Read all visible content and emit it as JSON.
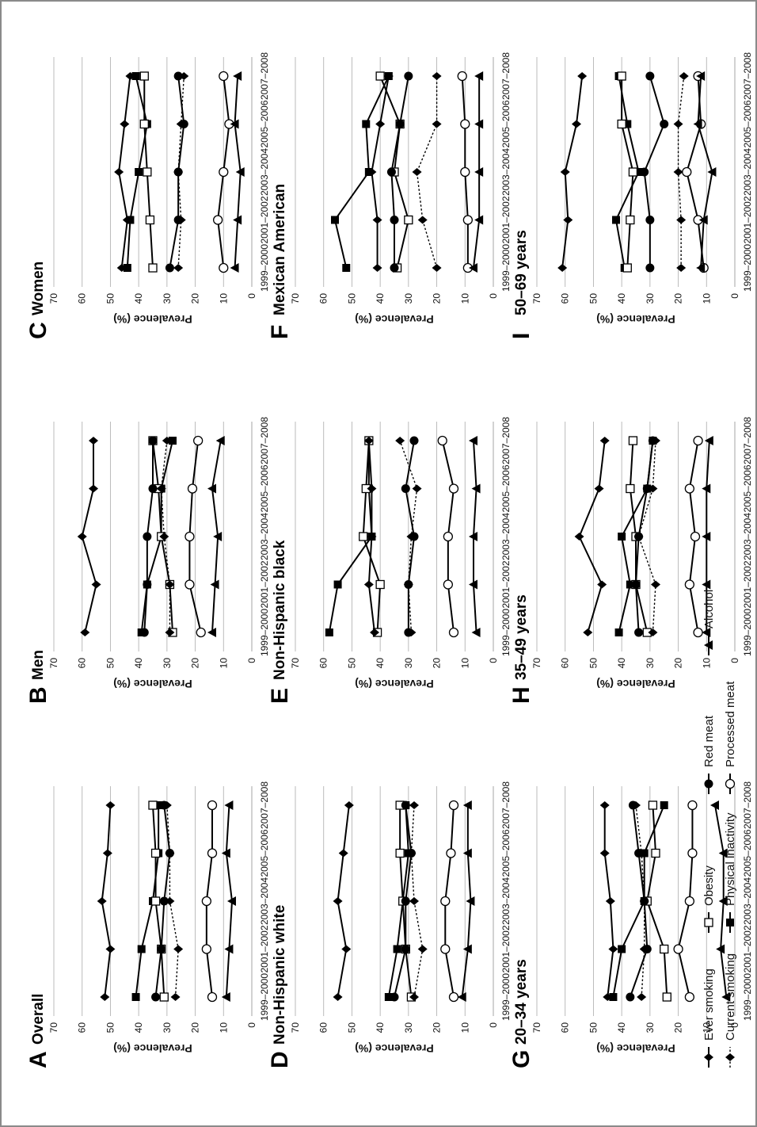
{
  "figure": {
    "legend": [
      {
        "name": "Ever smoking",
        "marker": "diamond",
        "dash": false
      },
      {
        "name": "Current smoking",
        "marker": "diamond",
        "dash": true
      },
      {
        "name": "Obesity",
        "marker": "square-open",
        "dash": false
      },
      {
        "name": "Physical inactivity",
        "marker": "square",
        "dash": false
      },
      {
        "name": "Red meat",
        "marker": "circle",
        "dash": false
      },
      {
        "name": "Processed meat",
        "marker": "circle-open",
        "dash": false
      },
      {
        "name": "Alcohol",
        "marker": "triangle",
        "dash": false
      }
    ],
    "colors": {
      "line": "#000000",
      "grid": "#b4b4b4",
      "frame": "#8a8a8a"
    }
  },
  "chart_data": [
    {
      "letter": "A",
      "title": "Overall",
      "type": "line",
      "x": [
        "1999–2000",
        "2001–2002",
        "2003–2004",
        "2005–2006",
        "2007–2008"
      ],
      "ylabel": "Prevalence (%)",
      "ylim": [
        0,
        70
      ],
      "yticks": [
        0,
        10,
        20,
        30,
        40,
        50,
        60,
        70
      ],
      "grid": true,
      "series": [
        {
          "name": "Ever smoking",
          "values": [
            52,
            50,
            53,
            51,
            50
          ]
        },
        {
          "name": "Current smoking",
          "values": [
            27,
            26,
            29,
            29,
            30
          ]
        },
        {
          "name": "Obesity",
          "values": [
            31,
            32,
            34,
            34,
            35
          ]
        },
        {
          "name": "Physical inactivity",
          "values": [
            41,
            39,
            35,
            33,
            33
          ]
        },
        {
          "name": "Red meat",
          "values": [
            34,
            32,
            31,
            29,
            31
          ]
        },
        {
          "name": "Processed meat",
          "values": [
            14,
            16,
            16,
            14,
            14
          ]
        },
        {
          "name": "Alcohol",
          "values": [
            9,
            8,
            7,
            9,
            8
          ]
        }
      ]
    },
    {
      "letter": "B",
      "title": "Men",
      "type": "line",
      "x": [
        "1999–2000",
        "2001–2002",
        "2003–2004",
        "2005–2006",
        "2007–2008"
      ],
      "ylabel": "Prevalence (%)",
      "ylim": [
        0,
        70
      ],
      "yticks": [
        0,
        10,
        20,
        30,
        40,
        50,
        60,
        70
      ],
      "grid": true,
      "series": [
        {
          "name": "Ever smoking",
          "values": [
            59,
            55,
            60,
            56,
            56
          ]
        },
        {
          "name": "Current smoking",
          "values": [
            29,
            29,
            31,
            32,
            30
          ]
        },
        {
          "name": "Obesity",
          "values": [
            28,
            29,
            32,
            33,
            35
          ]
        },
        {
          "name": "Physical inactivity",
          "values": [
            39,
            37,
            32,
            32,
            28
          ]
        },
        {
          "name": "Red meat",
          "values": [
            38,
            37,
            37,
            35,
            35
          ]
        },
        {
          "name": "Processed meat",
          "values": [
            18,
            22,
            22,
            21,
            19
          ]
        },
        {
          "name": "Alcohol",
          "values": [
            14,
            13,
            12,
            14,
            11
          ]
        }
      ]
    },
    {
      "letter": "C",
      "title": "Women",
      "type": "line",
      "x": [
        "1999–2000",
        "2001–2002",
        "2003–2004",
        "2005–2006",
        "2007–2008"
      ],
      "ylabel": "Prevalence (%)",
      "ylim": [
        0,
        70
      ],
      "yticks": [
        0,
        10,
        20,
        30,
        40,
        50,
        60,
        70
      ],
      "grid": true,
      "series": [
        {
          "name": "Ever smoking",
          "values": [
            46,
            44,
            47,
            45,
            43
          ]
        },
        {
          "name": "Current smoking",
          "values": [
            26,
            25,
            26,
            25,
            24
          ]
        },
        {
          "name": "Obesity",
          "values": [
            35,
            36,
            37,
            38,
            38
          ]
        },
        {
          "name": "Physical inactivity",
          "values": [
            44,
            43,
            40,
            37,
            41
          ]
        },
        {
          "name": "Red meat",
          "values": [
            29,
            26,
            26,
            24,
            26
          ]
        },
        {
          "name": "Processed meat",
          "values": [
            10,
            12,
            10,
            8,
            10
          ]
        },
        {
          "name": "Alcohol",
          "values": [
            6,
            5,
            4,
            6,
            5
          ]
        }
      ]
    },
    {
      "letter": "D",
      "title": "Non-Hispanic white",
      "type": "line",
      "x": [
        "1999–2000",
        "2001–2002",
        "2003–2004",
        "2005–2006",
        "2007–2008"
      ],
      "ylabel": "Prevalence (%)",
      "ylim": [
        0,
        70
      ],
      "yticks": [
        0,
        10,
        20,
        30,
        40,
        50,
        60,
        70
      ],
      "grid": true,
      "series": [
        {
          "name": "Ever smoking",
          "values": [
            55,
            52,
            55,
            53,
            51
          ]
        },
        {
          "name": "Current smoking",
          "values": [
            28,
            25,
            28,
            29,
            28
          ]
        },
        {
          "name": "Obesity",
          "values": [
            29,
            31,
            32,
            33,
            33
          ]
        },
        {
          "name": "Physical inactivity",
          "values": [
            37,
            34,
            32,
            30,
            31
          ]
        },
        {
          "name": "Red meat",
          "values": [
            35,
            31,
            31,
            29,
            31
          ]
        },
        {
          "name": "Processed meat",
          "values": [
            14,
            17,
            17,
            15,
            14
          ]
        },
        {
          "name": "Alcohol",
          "values": [
            11,
            9,
            8,
            9,
            9
          ]
        }
      ]
    },
    {
      "letter": "E",
      "title": "Non-Hispanic black",
      "type": "line",
      "x": [
        "1999–2000",
        "2001–2002",
        "2003–2004",
        "2005–2006",
        "2007–2008"
      ],
      "ylabel": "Prevalence (%)",
      "ylim": [
        0,
        70
      ],
      "yticks": [
        0,
        10,
        20,
        30,
        40,
        50,
        60,
        70
      ],
      "grid": true,
      "series": [
        {
          "name": "Ever smoking",
          "values": [
            42,
            44,
            43,
            43,
            44
          ]
        },
        {
          "name": "Current smoking",
          "values": [
            29,
            30,
            29,
            27,
            33
          ]
        },
        {
          "name": "Obesity",
          "values": [
            41,
            40,
            46,
            45,
            44
          ]
        },
        {
          "name": "Physical inactivity",
          "values": [
            58,
            55,
            43,
            44,
            44
          ]
        },
        {
          "name": "Red meat",
          "values": [
            30,
            30,
            28,
            31,
            28
          ]
        },
        {
          "name": "Processed meat",
          "values": [
            14,
            16,
            16,
            14,
            18
          ]
        },
        {
          "name": "Alcohol",
          "values": [
            6,
            7,
            7,
            6,
            7
          ]
        }
      ]
    },
    {
      "letter": "F",
      "title": "Mexican American",
      "type": "line",
      "x": [
        "1999–2000",
        "2001–2002",
        "2003–2004",
        "2005–2006",
        "2007–2008"
      ],
      "ylabel": "Prevalence (%)",
      "ylim": [
        0,
        70
      ],
      "yticks": [
        0,
        10,
        20,
        30,
        40,
        50,
        60,
        70
      ],
      "grid": true,
      "series": [
        {
          "name": "Ever smoking",
          "values": [
            41,
            41,
            43,
            40,
            37
          ]
        },
        {
          "name": "Current smoking",
          "values": [
            20,
            25,
            27,
            20,
            20
          ]
        },
        {
          "name": "Obesity",
          "values": [
            34,
            30,
            35,
            33,
            40
          ]
        },
        {
          "name": "Physical inactivity",
          "values": [
            52,
            56,
            44,
            45,
            37
          ]
        },
        {
          "name": "Red meat",
          "values": [
            35,
            35,
            36,
            33,
            30
          ]
        },
        {
          "name": "Processed meat",
          "values": [
            9,
            9,
            10,
            10,
            11
          ]
        },
        {
          "name": "Alcohol",
          "values": [
            7,
            5,
            5,
            5,
            5
          ]
        }
      ]
    },
    {
      "letter": "G",
      "title": "20–34 years",
      "type": "line",
      "x": [
        "1999–2000",
        "2001–2002",
        "2003–2004",
        "2005–2006",
        "2007–2008"
      ],
      "ylabel": "Prevalence (%)",
      "ylim": [
        0,
        70
      ],
      "yticks": [
        0,
        10,
        20,
        30,
        40,
        50,
        60,
        70
      ],
      "grid": true,
      "series": [
        {
          "name": "Ever smoking",
          "values": [
            45,
            43,
            44,
            46,
            46
          ]
        },
        {
          "name": "Current smoking",
          "values": [
            33,
            32,
            32,
            33,
            35
          ]
        },
        {
          "name": "Obesity",
          "values": [
            24,
            25,
            31,
            28,
            29
          ]
        },
        {
          "name": "Physical inactivity",
          "values": [
            43,
            40,
            32,
            32,
            25
          ]
        },
        {
          "name": "Red meat",
          "values": [
            37,
            31,
            32,
            34,
            36
          ]
        },
        {
          "name": "Processed meat",
          "values": [
            16,
            20,
            16,
            15,
            15
          ]
        },
        {
          "name": "Alcohol",
          "values": [
            3,
            5,
            4,
            4,
            7
          ]
        }
      ]
    },
    {
      "letter": "H",
      "title": "35–49 years",
      "type": "line",
      "x": [
        "1999–2000",
        "2001–2002",
        "2003–2004",
        "2005–2006",
        "2007–2008"
      ],
      "ylabel": "Prevalence (%)",
      "ylim": [
        0,
        70
      ],
      "yticks": [
        0,
        10,
        20,
        30,
        40,
        50,
        60,
        70
      ],
      "grid": true,
      "series": [
        {
          "name": "Ever smoking",
          "values": [
            52,
            47,
            55,
            48,
            46
          ]
        },
        {
          "name": "Current smoking",
          "values": [
            29,
            28,
            34,
            29,
            28
          ]
        },
        {
          "name": "Obesity",
          "values": [
            31,
            35,
            35,
            37,
            36
          ]
        },
        {
          "name": "Physical inactivity",
          "values": [
            41,
            37,
            40,
            31,
            29
          ]
        },
        {
          "name": "Red meat",
          "values": [
            34,
            35,
            34,
            31,
            29
          ]
        },
        {
          "name": "Processed meat",
          "values": [
            13,
            16,
            14,
            16,
            13
          ]
        },
        {
          "name": "Alcohol",
          "values": [
            10,
            10,
            10,
            10,
            9
          ]
        }
      ]
    },
    {
      "letter": "I",
      "title": "50–69 years",
      "type": "line",
      "x": [
        "1999–2000",
        "2001–2002",
        "2003–2004",
        "2005–2006",
        "2007–2008"
      ],
      "ylabel": "Prevalence (%)",
      "ylim": [
        0,
        70
      ],
      "yticks": [
        0,
        10,
        20,
        30,
        40,
        50,
        60,
        70
      ],
      "grid": true,
      "series": [
        {
          "name": "Ever smoking",
          "values": [
            61,
            59,
            60,
            56,
            54
          ]
        },
        {
          "name": "Current smoking",
          "values": [
            19,
            19,
            20,
            20,
            18
          ]
        },
        {
          "name": "Obesity",
          "values": [
            38,
            37,
            36,
            40,
            40
          ]
        },
        {
          "name": "Physical inactivity",
          "values": [
            39,
            42,
            34,
            38,
            41
          ]
        },
        {
          "name": "Red meat",
          "values": [
            30,
            30,
            32,
            25,
            30
          ]
        },
        {
          "name": "Processed meat",
          "values": [
            11,
            13,
            17,
            12,
            13
          ]
        },
        {
          "name": "Alcohol",
          "values": [
            12,
            11,
            8,
            13,
            12
          ]
        }
      ]
    }
  ]
}
